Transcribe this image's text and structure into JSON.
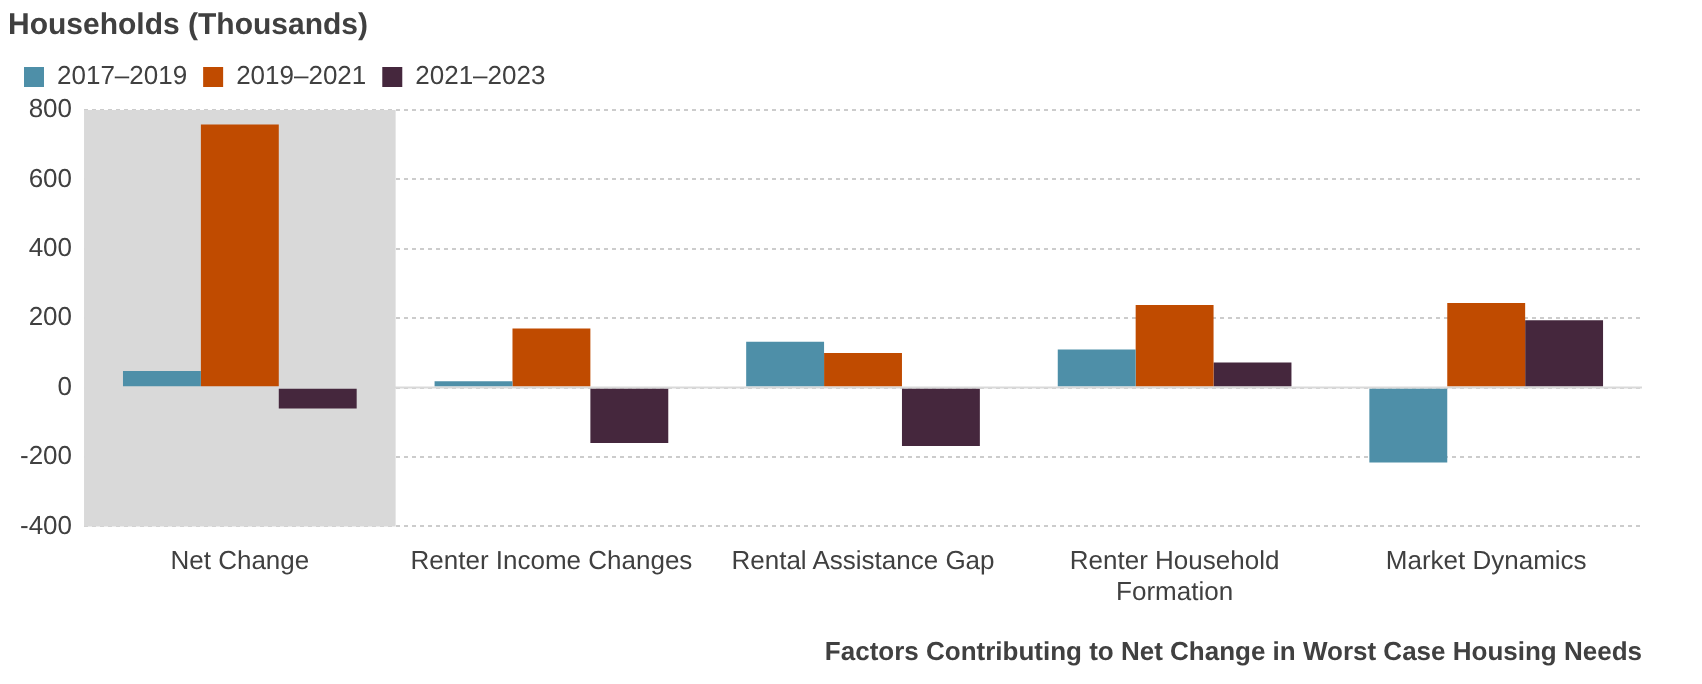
{
  "chart_data": {
    "type": "bar",
    "title": "Households (Thousands)",
    "xlabel": "Factors Contributing to Net Change in Worst Case Housing Needs",
    "categories": [
      "Net Change",
      "Renter Income Changes",
      "Rental Assistance Gap",
      "Renter Household Formation",
      "Market Dynamics"
    ],
    "series": [
      {
        "name": "2017–2019",
        "color": "#4e8fa8",
        "values": [
          48,
          18,
          132,
          110,
          -216
        ]
      },
      {
        "name": "2019–2021",
        "color": "#c04b00",
        "values": [
          758,
          170,
          100,
          238,
          244
        ]
      },
      {
        "name": "2021–2023",
        "color": "#45273d",
        "values": [
          -60,
          -160,
          -168,
          72,
          194
        ]
      }
    ],
    "ylim": [
      -400,
      800
    ],
    "yticks": [
      -400,
      -200,
      0,
      200,
      400,
      600,
      800
    ],
    "grid": "y",
    "legend": "top left",
    "bands": [
      {
        "axis": "x",
        "from": "Net Change",
        "to": "Net Change",
        "color": "#d9d9d9"
      }
    ]
  }
}
